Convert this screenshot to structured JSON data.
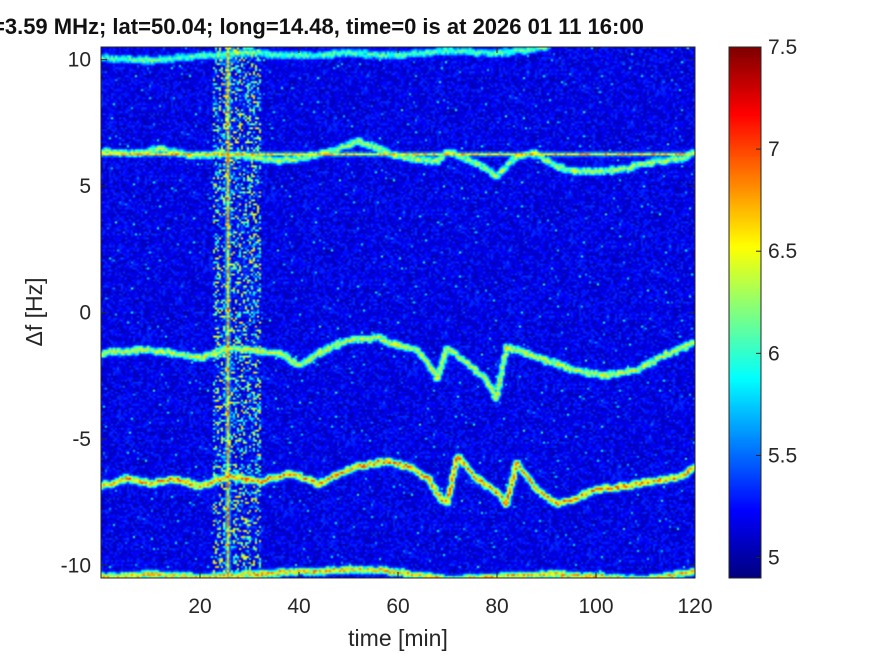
{
  "chart_data": {
    "type": "heatmap",
    "title": "=3.59 MHz;  lat=50.04; long=14.48, time=0 is at 2026 01 11 16:00",
    "xlabel": "time [min]",
    "ylabel": "Δf [Hz]",
    "xlim": [
      0,
      120
    ],
    "ylim": [
      -10.5,
      10.5
    ],
    "x_ticks": [
      20,
      40,
      60,
      80,
      100,
      120
    ],
    "y_ticks": [
      -10,
      -5,
      0,
      5,
      10
    ],
    "colorbar": {
      "range": [
        4.9,
        7.5
      ],
      "ticks": [
        5,
        5.5,
        6,
        6.5,
        7,
        7.5
      ],
      "colormap": "jet"
    },
    "background_level": 5.0,
    "features": [
      {
        "kind": "horizontal_line",
        "y": 6.3,
        "level": 6.6,
        "note": "constant carrier"
      },
      {
        "kind": "vertical_band",
        "x_start": 23,
        "x_end": 32,
        "level": 6.3,
        "note": "broadband interference"
      },
      {
        "kind": "trace",
        "level": 6.7,
        "points": [
          [
            0,
            -6.9
          ],
          [
            5,
            -6.6
          ],
          [
            10,
            -6.8
          ],
          [
            15,
            -6.6
          ],
          [
            20,
            -6.9
          ],
          [
            26,
            -6.5
          ],
          [
            32,
            -6.7
          ],
          [
            38,
            -6.4
          ],
          [
            44,
            -6.8
          ],
          [
            48,
            -6.4
          ],
          [
            52,
            -6.1
          ],
          [
            58,
            -5.9
          ],
          [
            62,
            -6.1
          ],
          [
            66,
            -6.6
          ],
          [
            68,
            -7.2
          ],
          [
            70,
            -7.6
          ],
          [
            72,
            -5.7
          ],
          [
            76,
            -6.6
          ],
          [
            80,
            -7.1
          ],
          [
            82,
            -7.6
          ],
          [
            84,
            -6.0
          ],
          [
            88,
            -7.0
          ],
          [
            92,
            -7.6
          ],
          [
            96,
            -7.4
          ],
          [
            100,
            -7.0
          ],
          [
            106,
            -6.9
          ],
          [
            112,
            -6.7
          ],
          [
            118,
            -6.5
          ],
          [
            120,
            -6.1
          ]
        ]
      },
      {
        "kind": "trace",
        "level": 6.4,
        "points": [
          [
            0,
            -1.6
          ],
          [
            8,
            -1.5
          ],
          [
            14,
            -1.6
          ],
          [
            20,
            -1.8
          ],
          [
            26,
            -1.4
          ],
          [
            30,
            -1.5
          ],
          [
            36,
            -1.6
          ],
          [
            40,
            -2.1
          ],
          [
            44,
            -1.6
          ],
          [
            50,
            -1.1
          ],
          [
            56,
            -1.0
          ],
          [
            60,
            -1.3
          ],
          [
            64,
            -1.5
          ],
          [
            67,
            -2.3
          ],
          [
            68,
            -2.6
          ],
          [
            70,
            -1.4
          ],
          [
            74,
            -2.0
          ],
          [
            78,
            -2.7
          ],
          [
            80,
            -3.4
          ],
          [
            82,
            -1.4
          ],
          [
            86,
            -1.6
          ],
          [
            90,
            -1.9
          ],
          [
            96,
            -2.3
          ],
          [
            102,
            -2.5
          ],
          [
            108,
            -2.3
          ],
          [
            114,
            -1.7
          ],
          [
            120,
            -1.2
          ]
        ]
      },
      {
        "kind": "trace",
        "level": 6.3,
        "points": [
          [
            0,
            6.4
          ],
          [
            6,
            6.3
          ],
          [
            12,
            6.5
          ],
          [
            18,
            6.2
          ],
          [
            24,
            6.3
          ],
          [
            30,
            6.2
          ],
          [
            36,
            6.0
          ],
          [
            42,
            6.2
          ],
          [
            48,
            6.5
          ],
          [
            52,
            6.8
          ],
          [
            56,
            6.5
          ],
          [
            60,
            6.2
          ],
          [
            64,
            6.1
          ],
          [
            68,
            6.0
          ],
          [
            70,
            6.4
          ],
          [
            74,
            6.1
          ],
          [
            78,
            5.7
          ],
          [
            80,
            5.4
          ],
          [
            84,
            6.2
          ],
          [
            88,
            6.3
          ],
          [
            92,
            5.8
          ],
          [
            96,
            5.6
          ],
          [
            100,
            5.6
          ],
          [
            106,
            5.7
          ],
          [
            112,
            6.0
          ],
          [
            118,
            6.1
          ],
          [
            120,
            6.4
          ]
        ]
      },
      {
        "kind": "trace",
        "level": 6.1,
        "points": [
          [
            0,
            10.1
          ],
          [
            10,
            10.0
          ],
          [
            20,
            10.2
          ],
          [
            30,
            10.3
          ],
          [
            40,
            10.2
          ],
          [
            50,
            10.3
          ],
          [
            60,
            10.2
          ],
          [
            70,
            10.4
          ],
          [
            80,
            10.3
          ],
          [
            90,
            10.5
          ]
        ]
      },
      {
        "kind": "trace",
        "level": 6.6,
        "points": [
          [
            0,
            -10.5
          ],
          [
            10,
            -10.4
          ],
          [
            20,
            -10.5
          ],
          [
            30,
            -10.4
          ],
          [
            40,
            -10.3
          ],
          [
            50,
            -10.2
          ],
          [
            60,
            -10.3
          ],
          [
            70,
            -10.6
          ],
          [
            80,
            -10.5
          ],
          [
            90,
            -10.4
          ],
          [
            100,
            -10.5
          ],
          [
            110,
            -10.6
          ],
          [
            120,
            -10.3
          ]
        ]
      }
    ]
  }
}
